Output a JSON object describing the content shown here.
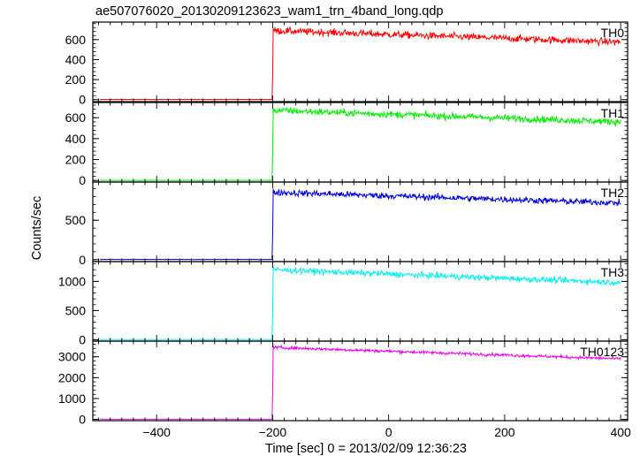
{
  "title": "ae507076020_20130209123623_wam1_trn_4band_long.qdp",
  "chart_data": {
    "type": "line",
    "title": "ae507076020_20130209123623_wam1_trn_4band_long.qdp",
    "xlabel": "Time [sec] 0 = 2013/02/09 12:36:23",
    "ylabel": "Counts/sec",
    "xlim": [
      -510,
      412
    ],
    "x_ticks": [
      -400,
      -200,
      0,
      200,
      400
    ],
    "x_tick_labels": [
      "−400",
      "−200",
      "0",
      "200",
      "400"
    ],
    "grid": false,
    "panels": [
      {
        "label": "TH0",
        "color": "#ff0000",
        "ylim": [
          -20,
          775
        ],
        "y_ticks": [
          0,
          200,
          400,
          600
        ],
        "y_tick_labels": [
          "0",
          "200",
          "400",
          "600"
        ],
        "series": {
          "x_start": -498,
          "x_end": 400,
          "step": 1,
          "t_onset": -200,
          "pre_level": 2,
          "post_start": 690,
          "post_end": 575,
          "noise": 45,
          "spike_peak": 710
        }
      },
      {
        "label": "TH1",
        "color": "#00ee00",
        "ylim": [
          -15,
          745
        ],
        "y_ticks": [
          0,
          200,
          400,
          600
        ],
        "y_tick_labels": [
          "0",
          "200",
          "400",
          "600"
        ],
        "series": {
          "x_start": -498,
          "x_end": 400,
          "step": 1,
          "t_onset": -200,
          "pre_level": 1,
          "post_start": 670,
          "post_end": 560,
          "noise": 42,
          "spike_peak": 690
        }
      },
      {
        "label": "TH2",
        "color": "#0000dd",
        "ylim": [
          -25,
          985
        ],
        "y_ticks": [
          0,
          500
        ],
        "y_tick_labels": [
          "0",
          "500"
        ],
        "series": {
          "x_start": -498,
          "x_end": 400,
          "step": 1,
          "t_onset": -200,
          "pre_level": 2,
          "post_start": 855,
          "post_end": 720,
          "noise": 52,
          "spike_peak": 900
        }
      },
      {
        "label": "TH3",
        "color": "#00f0f0",
        "ylim": [
          -25,
          1340
        ],
        "y_ticks": [
          0,
          500,
          1000
        ],
        "y_tick_labels": [
          "0",
          "500",
          "1000"
        ],
        "series": {
          "x_start": -498,
          "x_end": 400,
          "step": 1,
          "t_onset": -200,
          "pre_level": 3,
          "post_start": 1200,
          "post_end": 980,
          "noise": 65,
          "spike_peak": 1250
        }
      },
      {
        "label": "TH0123",
        "color": "#ee00ee",
        "ylim": [
          -60,
          3750
        ],
        "y_ticks": [
          0,
          1000,
          2000,
          3000
        ],
        "y_tick_labels": [
          "0",
          "1000",
          "2000",
          "3000"
        ],
        "series": {
          "x_start": -498,
          "x_end": 400,
          "step": 1,
          "t_onset": -200,
          "pre_level": 10,
          "post_start": 3450,
          "post_end": 2900,
          "noise": 90,
          "spike_peak": 3550
        }
      }
    ]
  }
}
